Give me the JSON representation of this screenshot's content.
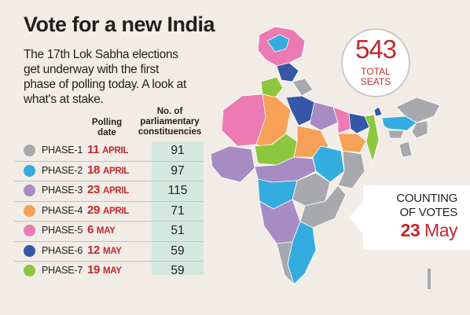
{
  "title": "Vote for a new India",
  "subtitle": "The 17th Lok Sabha elections get underway with the first phase of polling today. A look at what's at stake.",
  "headers": {
    "polling_date": "Polling date",
    "constituencies": "No. of parliamentary constituencies"
  },
  "phases": [
    {
      "phase": "PHASE-1",
      "day": "11",
      "month": "APRIL",
      "count": "91",
      "color": "#a7a9ac"
    },
    {
      "phase": "PHASE-2",
      "day": "18",
      "month": "APRIL",
      "count": "97",
      "color": "#34ace0"
    },
    {
      "phase": "PHASE-3",
      "day": "23",
      "month": "APRIL",
      "count": "115",
      "color": "#a78cc4"
    },
    {
      "phase": "PHASE-4",
      "day": "29",
      "month": "APRIL",
      "count": "71",
      "color": "#f7a156"
    },
    {
      "phase": "PHASE-5",
      "day": "6",
      "month": "MAY",
      "count": "51",
      "color": "#ec7bb3"
    },
    {
      "phase": "PHASE-6",
      "day": "12",
      "month": "MAY",
      "count": "59",
      "color": "#3657a6"
    },
    {
      "phase": "PHASE-7",
      "day": "19",
      "month": "MAY",
      "count": "59",
      "color": "#8dc63f"
    }
  ],
  "seats": {
    "number": "543",
    "label_line1": "TOTAL",
    "label_line2": "SEATS"
  },
  "counting": {
    "line1": "COUNTING",
    "line2": "OF VOTES",
    "day": "23",
    "month": "May"
  },
  "colors": {
    "accent_red": "#c0282e",
    "count_column_bg": "#d4e8e0",
    "background": "#f1ece6"
  }
}
